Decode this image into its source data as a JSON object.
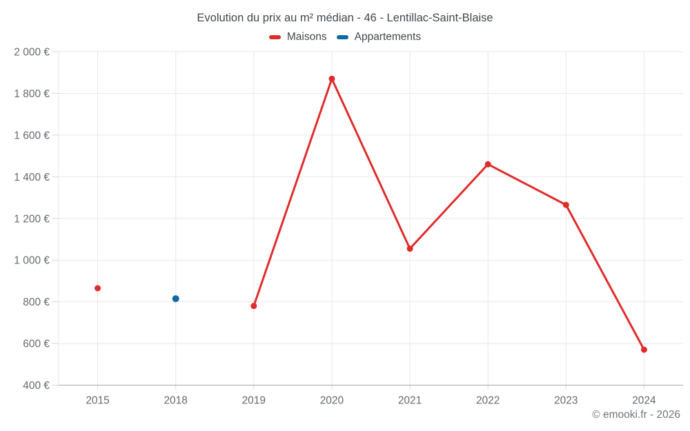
{
  "title": "Evolution du prix au m² médian - 46 - Lentillac-Saint-Blaise",
  "footer": "© emooki.fr - 2026",
  "legend": {
    "items": [
      {
        "label": "Maisons",
        "color": "#e02b2b"
      },
      {
        "label": "Appartements",
        "color": "#1069a3"
      }
    ]
  },
  "chart_data": {
    "type": "line",
    "title": "Evolution du prix au m² médian - 46 - Lentillac-Saint-Blaise",
    "xlabel": "",
    "ylabel": "",
    "categories": [
      "2015",
      "2018",
      "2019",
      "2020",
      "2021",
      "2022",
      "2023",
      "2024"
    ],
    "series": [
      {
        "name": "Maisons",
        "color": "#e02b2b",
        "marker_radius": 4.5,
        "values": [
          865,
          null,
          780,
          1870,
          1055,
          1460,
          1265,
          570
        ]
      },
      {
        "name": "Appartements",
        "color": "#1069a3",
        "marker_radius": 5,
        "values": [
          null,
          815,
          null,
          null,
          null,
          null,
          null,
          null
        ]
      }
    ],
    "ylim": [
      400,
      2000
    ],
    "y_tick_step": 200,
    "y_tick_suffix": " €",
    "grid": true,
    "legend_position": "top",
    "colors": {
      "grid_line": "#e7e7e7",
      "axis_line": "#a3a7ab",
      "tick_mark": "#d2d5d8",
      "axis_label": "#65696e"
    }
  }
}
